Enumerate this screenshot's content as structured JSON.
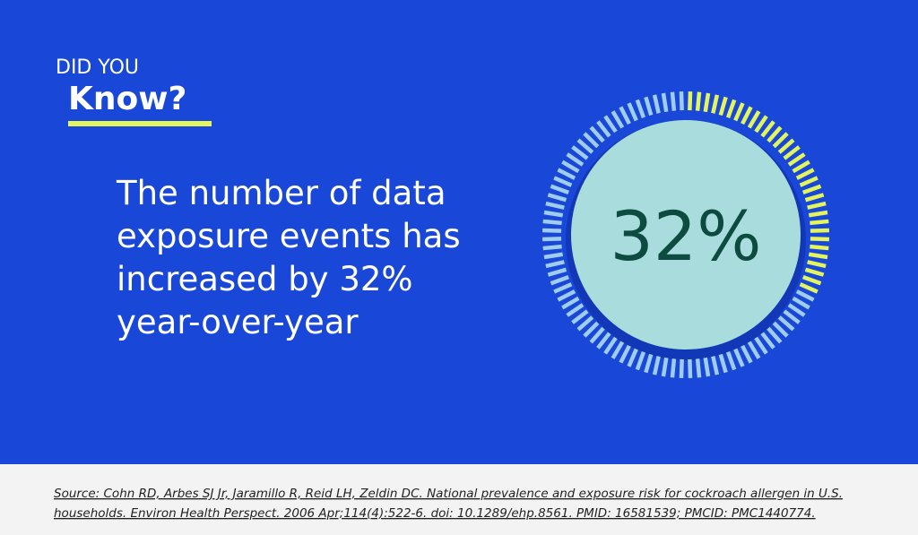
{
  "header": {
    "kicker": "DID YOU",
    "title": "Know?"
  },
  "statement": {
    "lines": [
      "The number of data",
      "exposure events has",
      "increased by 32%",
      "year-over-year"
    ]
  },
  "gauge": {
    "value": 32,
    "label": "32%"
  },
  "source": {
    "lines": [
      "Source: Cohn RD, Arbes SJ Jr, Jaramillo R, Reid LH, Zeldin DC. National prevalence and exposure risk for cockroach allergen in U.S.",
      "households. Environ Health Perspect. 2006 Apr;114(4):522-6. doi: 10.1289/ehp.8561. PMID: 16581539; PMCID: PMC1440774."
    ]
  }
}
